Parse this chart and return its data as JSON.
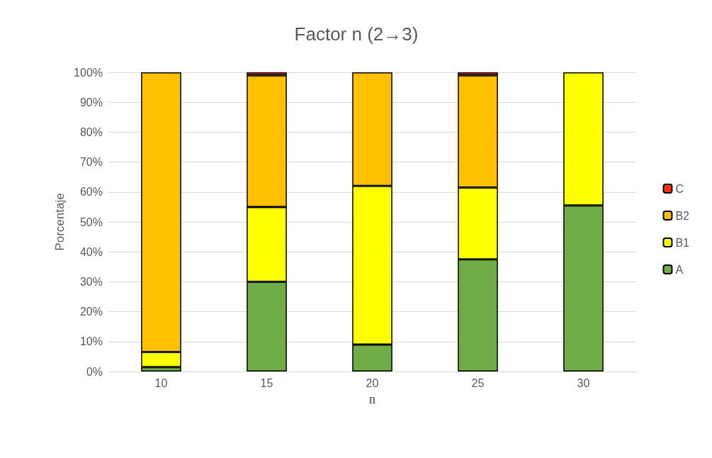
{
  "chart_data": {
    "type": "bar",
    "title": "Factor n (2→3)",
    "xlabel": "n",
    "ylabel": "Porcentaje",
    "categories": [
      "10",
      "15",
      "20",
      "25",
      "30"
    ],
    "stacked": true,
    "series": [
      {
        "name": "A",
        "color": "#70ad47",
        "values": [
          1.5,
          30,
          9,
          37.5,
          55.5
        ]
      },
      {
        "name": "B1",
        "color": "#ffff00",
        "values": [
          5,
          25,
          53,
          24,
          44.5
        ]
      },
      {
        "name": "B2",
        "color": "#ffc000",
        "values": [
          93.5,
          44,
          38,
          37.5,
          null
        ]
      },
      {
        "name": "C",
        "color": "#ff3300",
        "values": [
          null,
          1,
          null,
          1,
          null
        ]
      }
    ],
    "ylim": [
      0,
      100
    ],
    "yticks": [
      {
        "value": 0,
        "label": "0%"
      },
      {
        "value": 10,
        "label": "10%"
      },
      {
        "value": 20,
        "label": "20%"
      },
      {
        "value": 30,
        "label": "30%"
      },
      {
        "value": 40,
        "label": "40%"
      },
      {
        "value": 50,
        "label": "50%"
      },
      {
        "value": 60,
        "label": "60%"
      },
      {
        "value": 70,
        "label": "70%"
      },
      {
        "value": 80,
        "label": "80%"
      },
      {
        "value": 90,
        "label": "90%"
      },
      {
        "value": 100,
        "label": "100%"
      }
    ],
    "grid": "y",
    "legend": "right"
  }
}
